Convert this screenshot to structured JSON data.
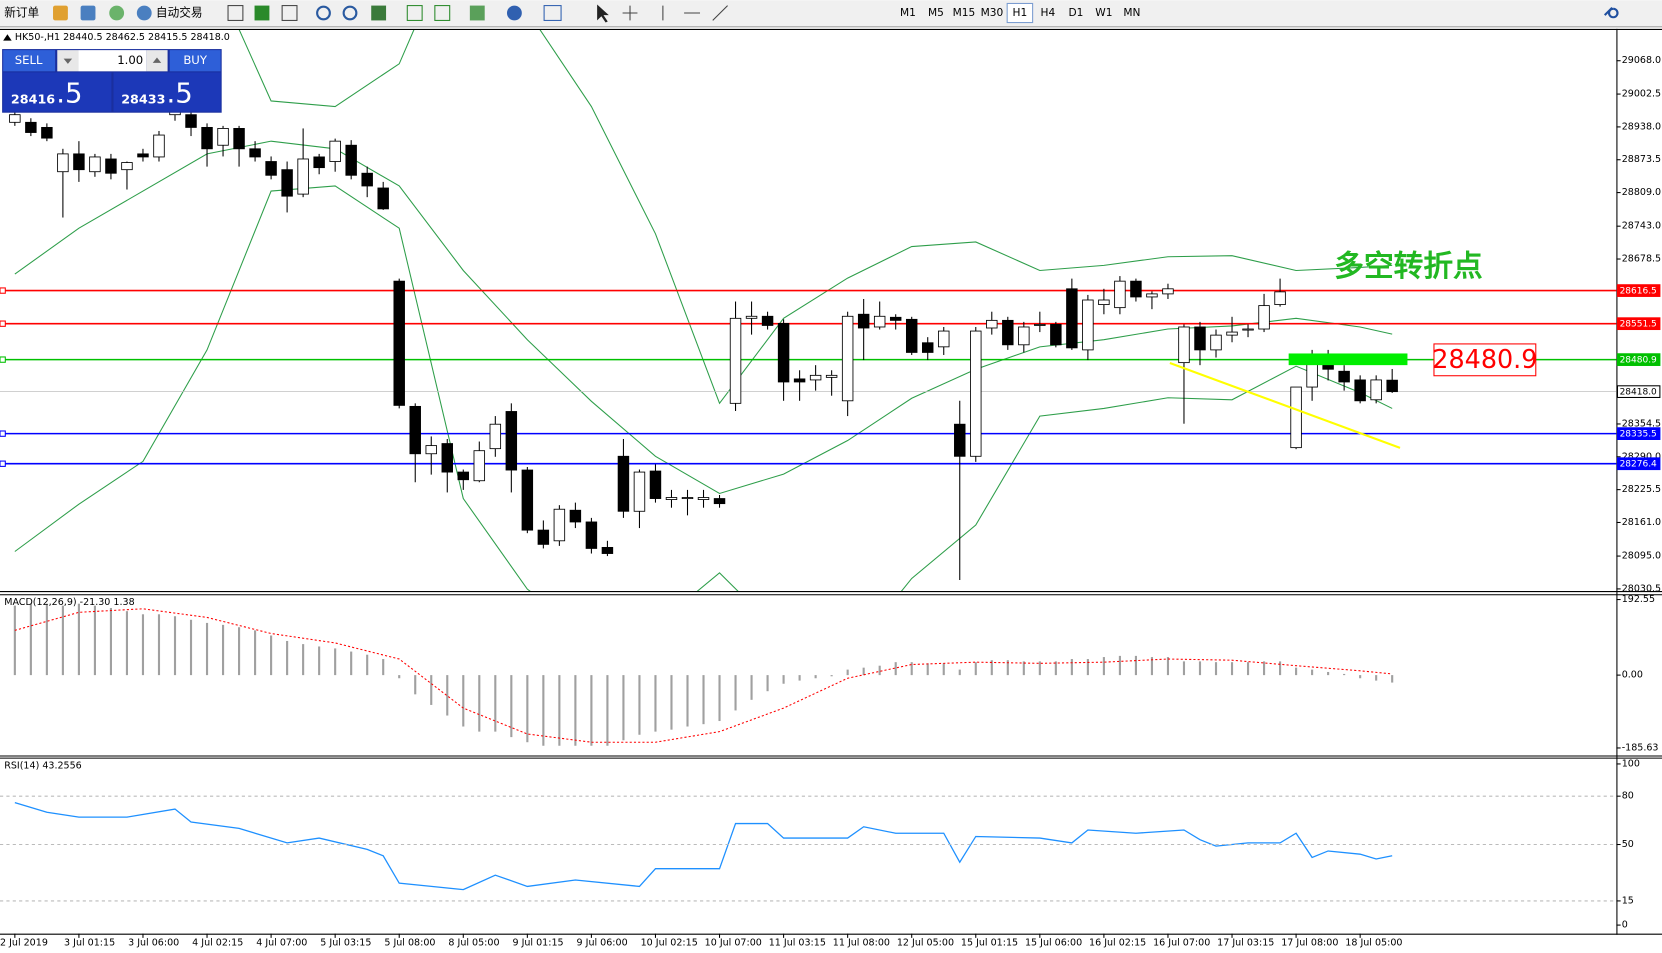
{
  "toolbar": {
    "new_order": "新订单",
    "auto_trading": "自动交易",
    "timeframes": [
      "M1",
      "M5",
      "M15",
      "M30",
      "H1",
      "H4",
      "D1",
      "W1",
      "MN"
    ],
    "active": "H1"
  },
  "trade_panel": {
    "sell": "SELL",
    "lots": "1.00",
    "buy": "BUY",
    "sell_price": "28416",
    "sell_fraction": ".5",
    "buy_price": "28433",
    "buy_fraction": ".5"
  },
  "chart_data": [
    {
      "type": "candlestick",
      "title": "HK50-,H1  28440.5 28462.5 28415.5 28418.0",
      "categories": [
        "2 Jul 2019",
        null,
        null,
        null,
        "3 Jul 01:15",
        null,
        null,
        null,
        "3 Jul 06:00",
        null,
        null,
        null,
        "4 Jul 02:15",
        null,
        null,
        null,
        "4 Jul 07:00",
        null,
        null,
        null,
        "5 Jul 03:15",
        null,
        null,
        null,
        "5 Jul 08:00",
        null,
        null,
        null,
        "8 Jul 05:00",
        null,
        null,
        null,
        "9 Jul 01:15",
        null,
        null,
        null,
        "9 Jul 06:00",
        null,
        null,
        null,
        "10 Jul 02:15",
        null,
        null,
        null,
        "10 Jul 07:00",
        null,
        null,
        null,
        "11 Jul 03:15",
        null,
        null,
        null,
        "11 Jul 08:00",
        null,
        null,
        null,
        "12 Jul 05:00",
        null,
        null,
        null,
        "15 Jul 01:15",
        null,
        null,
        null,
        "15 Jul 06:00",
        null,
        null,
        null,
        "16 Jul 02:15",
        null,
        null,
        null,
        "16 Jul 07:00",
        null,
        null,
        null,
        "17 Jul 03:15",
        null,
        null,
        null,
        "17 Jul 08:00",
        null,
        null,
        null,
        "18 Jul 05:00",
        null,
        null
      ],
      "open": [
        28947,
        28947,
        28937,
        28850,
        28885,
        28850,
        28875,
        28854,
        28885,
        28879,
        28962,
        28962,
        28937,
        28902,
        28935,
        28895,
        28870,
        28854,
        28806,
        28879,
        28870,
        28902,
        28847,
        28818,
        28635,
        28389,
        28296,
        28316,
        28260,
        28243,
        28306,
        28379,
        28264,
        28146,
        28125,
        28185,
        28162,
        28112,
        28291,
        28183,
        28262,
        28206,
        28208,
        28206,
        28208,
        28395,
        28562,
        28566,
        28552,
        28443,
        28441,
        28446,
        28400,
        28570,
        28545,
        28564,
        28560,
        28514,
        28506,
        28354,
        28291,
        28543,
        28558,
        28510,
        28548,
        28550,
        28620,
        28500,
        28589,
        28583,
        28635,
        28604,
        28610,
        28475,
        28545,
        28500,
        28529,
        28539,
        28541,
        28589,
        28308,
        28427,
        28475,
        28458,
        28441,
        28402,
        28440.5
      ],
      "high": [
        28970,
        28955,
        28945,
        28895,
        28910,
        28885,
        28885,
        28870,
        28895,
        28930,
        28985,
        28975,
        28945,
        28940,
        28940,
        28910,
        28880,
        28870,
        28935,
        28885,
        28915,
        28912,
        28860,
        28830,
        28640,
        28395,
        28330,
        28325,
        28265,
        28320,
        28370,
        28395,
        28270,
        28165,
        28195,
        28200,
        28170,
        28125,
        28325,
        28265,
        28275,
        28225,
        28225,
        28225,
        28215,
        28595,
        28595,
        28575,
        28560,
        28460,
        28470,
        28460,
        28575,
        28600,
        28595,
        28570,
        28565,
        28525,
        28545,
        28400,
        28545,
        28575,
        28565,
        28555,
        28575,
        28555,
        28640,
        28608,
        28620,
        28645,
        28640,
        28615,
        28630,
        28550,
        28555,
        28540,
        28565,
        28550,
        28610,
        28640,
        28427,
        28500,
        28500,
        28470,
        28450,
        28450,
        28462.5
      ],
      "low": [
        28940,
        28920,
        28910,
        28760,
        28830,
        28840,
        28835,
        28815,
        28870,
        28870,
        28950,
        28920,
        28860,
        28880,
        28860,
        28870,
        28835,
        28770,
        28800,
        28845,
        28850,
        28835,
        28800,
        28775,
        28385,
        28240,
        28255,
        28220,
        28225,
        28240,
        28290,
        28220,
        28140,
        28110,
        28115,
        28150,
        28100,
        28095,
        28170,
        28150,
        28200,
        28190,
        28175,
        28190,
        28190,
        28380,
        28530,
        28540,
        28400,
        28400,
        28420,
        28410,
        28370,
        28480,
        28540,
        28540,
        28490,
        28480,
        28490,
        28048,
        28280,
        28530,
        28500,
        28495,
        28535,
        28505,
        28500,
        28480,
        28570,
        28570,
        28595,
        28580,
        28600,
        28355,
        28470,
        28485,
        28515,
        28525,
        28535,
        28585,
        28305,
        28400,
        28440,
        28420,
        28395,
        28395,
        28415.5
      ],
      "close": [
        28962,
        28927,
        28916,
        28885,
        28854,
        28879,
        28847,
        28868,
        28879,
        28922,
        28979,
        28937,
        28895,
        28935,
        28895,
        28879,
        28843,
        28802,
        28875,
        28858,
        28910,
        28843,
        28822,
        28777,
        28391,
        28296,
        28312,
        28260,
        28245,
        28302,
        28354,
        28264,
        28146,
        28118,
        28187,
        28162,
        28110,
        28100,
        28183,
        28260,
        28208,
        28210,
        28210,
        28210,
        28198,
        28562,
        28566,
        28548,
        28437,
        28437,
        28450,
        28450,
        28566,
        28543,
        28566,
        28558,
        28495,
        28495,
        28537,
        28291,
        28537,
        28558,
        28510,
        28545,
        28550,
        28510,
        28504,
        28598,
        28598,
        28635,
        28604,
        28610,
        28620,
        28545,
        28500,
        28529,
        28535,
        28541,
        28587,
        28614,
        28427,
        28479,
        28462,
        28437,
        28400,
        28441,
        28418.0
      ],
      "bands": {
        "color": "#2e9e4a",
        "index": [
          0,
          4,
          8,
          12,
          16,
          20,
          24,
          28,
          32,
          36,
          40,
          44,
          48,
          52,
          56,
          60,
          64,
          68,
          72,
          76,
          80,
          84,
          86
        ],
        "upper": [
          29312,
          29353,
          29333,
          29270,
          28989,
          28978,
          29062,
          29353,
          29166,
          28978,
          28728,
          28395,
          28562,
          28641,
          28703,
          28712,
          28656,
          28666,
          28683,
          28685,
          28656,
          28662,
          28666
        ],
        "middle": [
          28649,
          28739,
          28812,
          28885,
          28910,
          28895,
          28822,
          28656,
          28520,
          28399,
          28291,
          28218,
          28256,
          28322,
          28405,
          28462,
          28506,
          28520,
          28541,
          28547,
          28562,
          28545,
          28531
        ],
        "lower": [
          28104,
          28197,
          28281,
          28500,
          28812,
          28822,
          28739,
          28208,
          28030,
          27937,
          27958,
          28062,
          27937,
          27895,
          28051,
          28156,
          28370,
          28385,
          28406,
          28402,
          28468,
          28416,
          28385
        ]
      },
      "hlines": [
        {
          "value": 28616.5,
          "color": "#ff0000"
        },
        {
          "value": 28551.5,
          "color": "#ff0000"
        },
        {
          "value": 28480.9,
          "color": "#00c000"
        },
        {
          "value": 28418.0,
          "label": "28418.0",
          "color": "#c0c0c0",
          "style": "current"
        },
        {
          "value": 28335.5,
          "color": "#0000ff"
        },
        {
          "value": 28276.4,
          "color": "#0000ff"
        }
      ],
      "annotation": "多空转折点",
      "ylim": [
        28026.3,
        29128.4
      ],
      "yticks": [
        {
          "value": 29068,
          "label": "29068.0"
        },
        29002.5,
        {
          "value": 28938,
          "label": "28938.0"
        },
        28873.5,
        {
          "value": 28809,
          "label": "28809.0"
        },
        {
          "value": 28743,
          "label": "28743.0"
        },
        28678.5,
        28354.5,
        {
          "value": 28290,
          "label": "28290.0"
        },
        28225.5,
        {
          "value": 28161,
          "label": "28161.0"
        },
        {
          "value": 28095,
          "label": "28095.0"
        },
        28030.5
      ],
      "grid": false
    },
    {
      "type": "macd",
      "title": "MACD(12,26,9) -21.30 1.38",
      "histogram": {
        "color": "#a0a0a0",
        "values": [
          177,
          182,
          182,
          177,
          182,
          177,
          171,
          163,
          155,
          155,
          150,
          141,
          133,
          128,
          122,
          114,
          101,
          87,
          79,
          73,
          68,
          60,
          52,
          41,
          -8,
          -49,
          -76,
          -103,
          -131,
          -144,
          -144,
          -158,
          -171,
          -180,
          -180,
          -180,
          -180,
          -180,
          -166,
          -152,
          -144,
          -139,
          -131,
          -125,
          -117,
          -90,
          -63,
          -41,
          -22,
          -14,
          -8,
          -3,
          14,
          19,
          24,
          33,
          33,
          30,
          30,
          14,
          33,
          38,
          38,
          35,
          35,
          35,
          41,
          41,
          46,
          49,
          49,
          46,
          46,
          35,
          35,
          33,
          33,
          33,
          35,
          35,
          19,
          14,
          8,
          3,
          -8,
          -14,
          -19
        ]
      },
      "signal": {
        "color": "#ff0000",
        "index": [
          0,
          4,
          8,
          12,
          16,
          20,
          24,
          28,
          32,
          36,
          40,
          44,
          48,
          52,
          56,
          60,
          64,
          68,
          72,
          76,
          80,
          84,
          86
        ],
        "values": [
          114,
          160,
          169,
          147,
          106,
          82,
          41,
          -84,
          -150,
          -171,
          -171,
          -144,
          -84,
          -8,
          27,
          33,
          30,
          33,
          41,
          38,
          24,
          11,
          3
        ]
      },
      "ylim": [
        -204.7,
        203.4
      ],
      "yticks": [
        192.55,
        {
          "value": 0,
          "label": "0.00"
        },
        -185.63
      ]
    },
    {
      "type": "line",
      "title": "RSI(14) 43.2556",
      "color": "#1e90ff",
      "index": [
        0,
        2,
        4,
        7,
        10,
        11,
        14,
        17,
        19,
        22,
        23,
        24,
        26,
        28,
        30,
        32,
        35,
        39,
        40,
        44,
        45,
        47,
        48,
        52,
        53,
        55,
        58,
        59,
        60,
        64,
        66,
        67,
        70,
        73,
        74,
        75,
        77,
        79,
        80,
        81,
        82,
        84,
        85,
        86
      ],
      "values": [
        76,
        70,
        67,
        67,
        72,
        64,
        60,
        51,
        54,
        47,
        43,
        26,
        24,
        22,
        31,
        24,
        28,
        24,
        35,
        35,
        63,
        63,
        54,
        54,
        61,
        57,
        57,
        39,
        55,
        54,
        51,
        59,
        57,
        59,
        53,
        49,
        51,
        51,
        57,
        42,
        46,
        44,
        41,
        43
      ],
      "ylim": [
        -5.3,
        103.3
      ],
      "yticks": [
        100,
        80,
        50,
        15,
        0
      ]
    }
  ]
}
